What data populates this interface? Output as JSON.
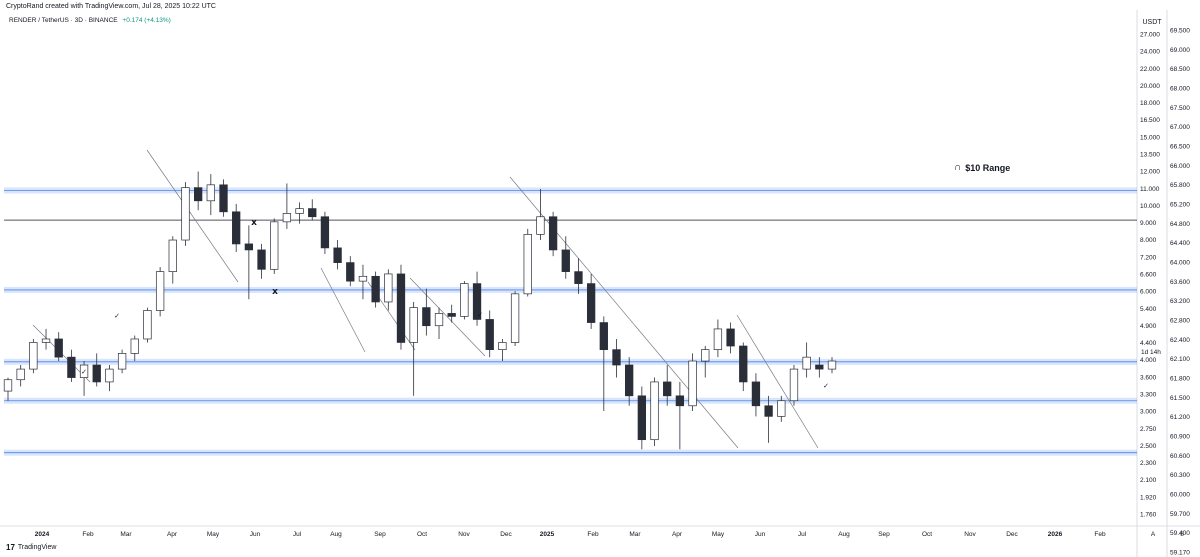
{
  "header": {
    "credit": "CryptoRand created with TradingView.com, Jul 28, 2025 10:22 UTC",
    "symbol": "RENDER / TetherUS · 3D · BINANCE",
    "change": "+0.174 (+4.13%)"
  },
  "footer": {
    "logo_text": "TradingView",
    "logo_mark": "17"
  },
  "colors": {
    "up": "#ffffff",
    "down": "#2a2e39",
    "zone": "#8fb5f5",
    "line": "#131722"
  },
  "chart_data": {
    "type": "candlestick",
    "y_unit": "USDT",
    "y_scale": "log",
    "ylim": [
      1.62,
      30.5
    ],
    "y_ticks_left": [
      "27.000",
      "24.000",
      "22.000",
      "20.000",
      "18.000",
      "16.500",
      "15.000",
      "13.500",
      "12.000",
      "11.000",
      "10.000",
      "9.000",
      "8.000",
      "7.200",
      "6.600",
      "6.000",
      "5.400",
      "4.900",
      "4.400",
      "4.000",
      "3.600",
      "3.300",
      "3.000",
      "2.750",
      "2.500",
      "2.300",
      "2.100",
      "1.920",
      "1.760"
    ],
    "y_ticks_right": [
      "69.500",
      "69.000",
      "68.500",
      "68.000",
      "67.500",
      "67.000",
      "66.500",
      "66.000",
      "65.800",
      "65.200",
      "64.800",
      "64.400",
      "64.000",
      "63.600",
      "63.200",
      "62.800",
      "62.400",
      "62.100",
      "61.800",
      "61.500",
      "61.200",
      "60.900",
      "60.600",
      "60.300",
      "60.000",
      "59.700",
      "59.400",
      "59.170"
    ],
    "x_ticks": [
      "2024",
      "Feb",
      "Mar",
      "Apr",
      "May",
      "Jun",
      "Jul",
      "Aug",
      "Sep",
      "Oct",
      "Nov",
      "Dec",
      "2025",
      "Feb",
      "Mar",
      "Apr",
      "May",
      "Jun",
      "Jul",
      "Aug",
      "Sep",
      "Oct",
      "Nov",
      "Dec",
      "2026",
      "Feb",
      "A",
      "8"
    ],
    "countdown_label": "1d 14h",
    "zones": [
      11.8,
      6.55,
      4.28,
      3.4,
      2.5
    ],
    "resistance_line": 9.9,
    "range_annotation": "$10 Range",
    "markers_x": [
      "x",
      "x"
    ],
    "markers_check": [
      "✓",
      "✓",
      "✓",
      "✓"
    ],
    "candles": [
      [
        3.6,
        3.9,
        3.4,
        3.85
      ],
      [
        3.85,
        4.2,
        3.7,
        4.1
      ],
      [
        4.1,
        4.9,
        4.0,
        4.8
      ],
      [
        4.8,
        5.2,
        4.6,
        4.9
      ],
      [
        4.9,
        5.1,
        4.3,
        4.4
      ],
      [
        4.4,
        4.6,
        3.8,
        3.9
      ],
      [
        3.9,
        4.3,
        3.5,
        4.2
      ],
      [
        4.2,
        4.5,
        3.7,
        3.8
      ],
      [
        3.8,
        4.2,
        3.6,
        4.1
      ],
      [
        4.1,
        4.6,
        4.0,
        4.5
      ],
      [
        4.5,
        5.0,
        4.3,
        4.9
      ],
      [
        4.9,
        5.9,
        4.8,
        5.8
      ],
      [
        5.8,
        7.5,
        5.6,
        7.3
      ],
      [
        7.3,
        9.0,
        6.8,
        8.8
      ],
      [
        8.8,
        12.4,
        8.5,
        12.0
      ],
      [
        12.0,
        13.2,
        10.5,
        11.1
      ],
      [
        11.1,
        13.0,
        10.2,
        12.2
      ],
      [
        12.2,
        12.6,
        10.1,
        10.4
      ],
      [
        10.4,
        10.9,
        8.2,
        8.6
      ],
      [
        8.6,
        9.6,
        6.2,
        8.3
      ],
      [
        8.3,
        8.6,
        7.0,
        7.4
      ],
      [
        7.4,
        10.0,
        7.2,
        9.8
      ],
      [
        9.8,
        12.3,
        9.4,
        10.3
      ],
      [
        10.3,
        11.0,
        9.7,
        10.6
      ],
      [
        10.6,
        11.2,
        9.9,
        10.1
      ],
      [
        10.1,
        10.4,
        8.1,
        8.4
      ],
      [
        8.4,
        8.8,
        7.4,
        7.7
      ],
      [
        7.7,
        8.0,
        6.7,
        6.9
      ],
      [
        6.9,
        7.6,
        6.2,
        7.1
      ],
      [
        7.1,
        7.3,
        5.9,
        6.1
      ],
      [
        6.1,
        7.4,
        5.8,
        7.2
      ],
      [
        7.2,
        7.6,
        4.6,
        4.8
      ],
      [
        4.8,
        6.1,
        3.5,
        5.9
      ],
      [
        5.9,
        6.6,
        5.0,
        5.3
      ],
      [
        5.3,
        5.9,
        4.9,
        5.7
      ],
      [
        5.7,
        6.0,
        5.4,
        5.6
      ],
      [
        5.6,
        6.9,
        5.5,
        6.8
      ],
      [
        6.8,
        7.3,
        5.3,
        5.5
      ],
      [
        5.5,
        5.8,
        4.4,
        4.6
      ],
      [
        4.6,
        4.9,
        4.3,
        4.8
      ],
      [
        4.8,
        6.5,
        4.7,
        6.4
      ],
      [
        6.4,
        9.4,
        6.3,
        9.1
      ],
      [
        9.1,
        11.9,
        8.8,
        10.1
      ],
      [
        10.1,
        10.4,
        8.0,
        8.3
      ],
      [
        8.3,
        9.0,
        7.0,
        7.3
      ],
      [
        7.3,
        7.9,
        6.4,
        6.8
      ],
      [
        6.8,
        7.2,
        5.2,
        5.4
      ],
      [
        5.4,
        5.6,
        3.2,
        4.6
      ],
      [
        4.6,
        4.9,
        3.9,
        4.2
      ],
      [
        4.2,
        4.4,
        3.3,
        3.5
      ],
      [
        3.5,
        3.7,
        2.55,
        2.7
      ],
      [
        2.7,
        3.9,
        2.6,
        3.8
      ],
      [
        3.8,
        4.2,
        3.3,
        3.5
      ],
      [
        3.5,
        3.8,
        2.55,
        3.3
      ],
      [
        3.3,
        4.5,
        3.2,
        4.3
      ],
      [
        4.3,
        4.7,
        3.9,
        4.6
      ],
      [
        4.6,
        5.5,
        4.4,
        5.2
      ],
      [
        5.2,
        5.4,
        4.5,
        4.7
      ],
      [
        4.7,
        4.8,
        3.6,
        3.8
      ],
      [
        3.8,
        4.0,
        3.1,
        3.3
      ],
      [
        3.3,
        3.5,
        2.65,
        3.1
      ],
      [
        3.1,
        3.5,
        3.0,
        3.4
      ],
      [
        3.4,
        4.2,
        3.3,
        4.1
      ],
      [
        4.1,
        4.8,
        3.9,
        4.4
      ],
      [
        4.2,
        4.4,
        3.9,
        4.1
      ],
      [
        4.1,
        4.4,
        4.0,
        4.3
      ]
    ]
  }
}
